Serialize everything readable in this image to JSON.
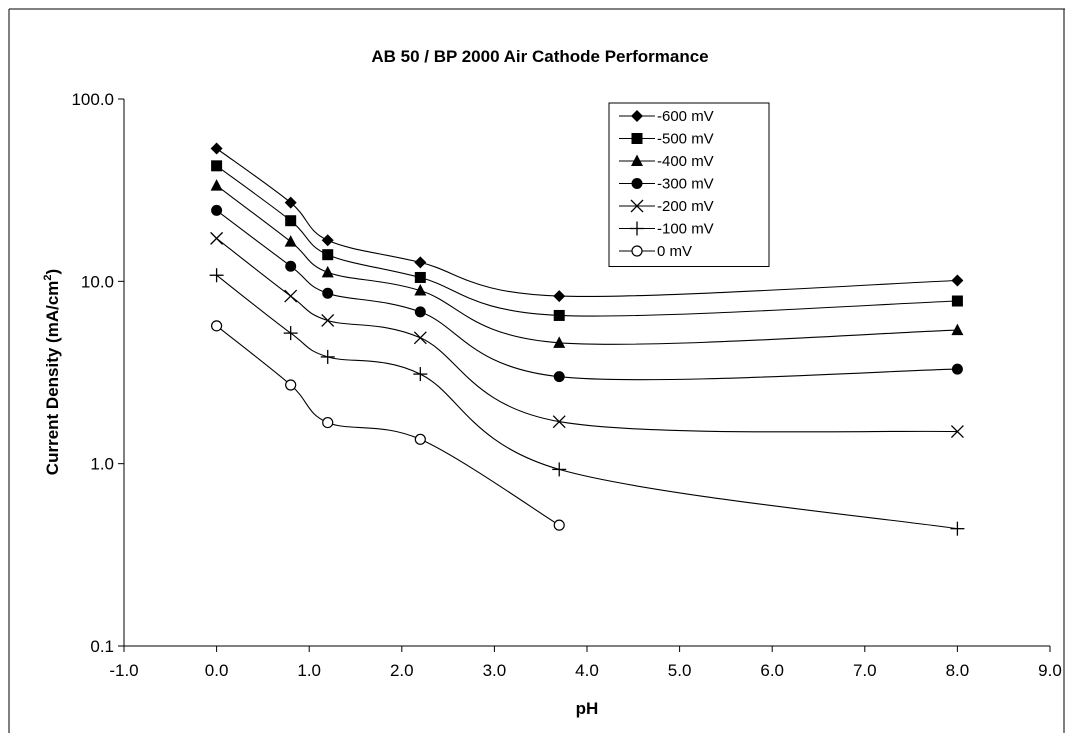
{
  "chart_data": {
    "type": "line",
    "title": "AB 50 / BP 2000 Air Cathode Performance",
    "xlabel": "pH",
    "ylabel": "Current Density (mA/cm",
    "ylabel_sup": "2",
    "ylabel_end": ")",
    "xlim": [
      -1.0,
      9.0
    ],
    "ylim": [
      0.1,
      100.0
    ],
    "y_scale": "log",
    "x_ticks": [
      -1.0,
      0.0,
      1.0,
      2.0,
      3.0,
      4.0,
      5.0,
      6.0,
      7.0,
      8.0,
      9.0
    ],
    "x_tick_labels": [
      "-1.0",
      "0.0",
      "1.0",
      "2.0",
      "3.0",
      "4.0",
      "5.0",
      "6.0",
      "7.0",
      "8.0",
      "9.0"
    ],
    "y_ticks": [
      0.1,
      1.0,
      10.0,
      100.0
    ],
    "y_tick_labels": [
      "0.1",
      "1.0",
      "10.0",
      "100.0"
    ],
    "grid": false,
    "legend_position": "top-right",
    "series": [
      {
        "name": "-600 mV",
        "marker": "diamond",
        "x": [
          0.0,
          0.8,
          1.2,
          2.2,
          3.7,
          8.0
        ],
        "values": [
          53.5,
          27.0,
          16.8,
          12.7,
          8.3,
          10.1
        ]
      },
      {
        "name": "-500 mV",
        "marker": "square",
        "x": [
          0.0,
          0.8,
          1.2,
          2.2,
          3.7,
          8.0
        ],
        "values": [
          43.0,
          21.5,
          14.0,
          10.5,
          6.5,
          7.8
        ]
      },
      {
        "name": "-400 mV",
        "marker": "triangle",
        "x": [
          0.0,
          0.8,
          1.2,
          2.2,
          3.7,
          8.0
        ],
        "values": [
          33.5,
          16.5,
          11.2,
          8.9,
          4.6,
          5.4
        ]
      },
      {
        "name": "-300 mV",
        "marker": "circle",
        "x": [
          0.0,
          0.8,
          1.2,
          2.2,
          3.7,
          8.0
        ],
        "values": [
          24.5,
          12.1,
          8.6,
          6.8,
          3.0,
          3.3
        ]
      },
      {
        "name": "-200 mV",
        "marker": "x",
        "x": [
          0.0,
          0.8,
          1.2,
          2.2,
          3.7,
          8.0
        ],
        "values": [
          17.2,
          8.3,
          6.1,
          4.9,
          1.7,
          1.5
        ]
      },
      {
        "name": "-100 mV",
        "marker": "plus",
        "x": [
          0.0,
          0.8,
          1.2,
          2.2,
          3.7,
          8.0
        ],
        "values": [
          10.8,
          5.2,
          3.85,
          3.1,
          0.93,
          0.44
        ]
      },
      {
        "name": "0 mV",
        "marker": "open-circle",
        "x": [
          0.0,
          0.8,
          1.2,
          2.2,
          3.7
        ],
        "values": [
          5.7,
          2.7,
          1.68,
          1.36,
          0.46
        ]
      }
    ]
  }
}
